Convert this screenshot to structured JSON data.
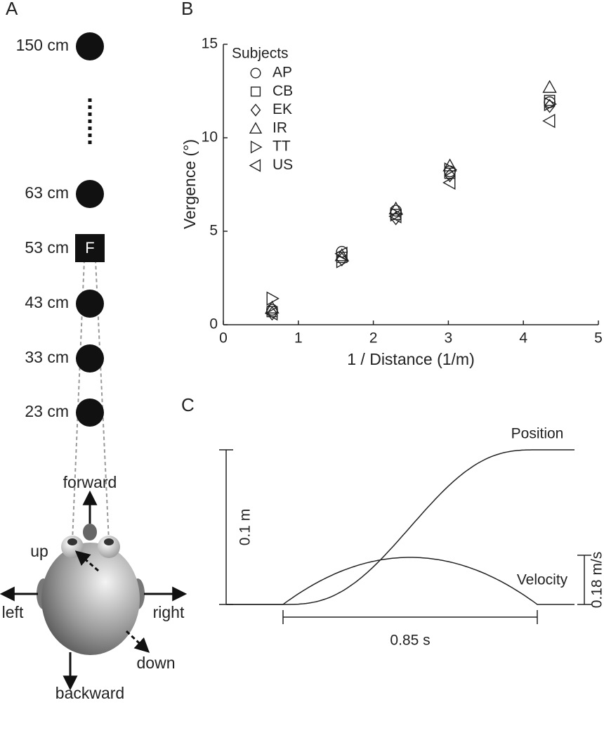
{
  "panel_labels": [
    "A",
    "B",
    "C"
  ],
  "diagram": {
    "distances": [
      "150 cm",
      "63 cm",
      "53 cm",
      "43 cm",
      "33 cm",
      "23 cm"
    ],
    "fixation_label": "F",
    "directions": {
      "forward": "forward",
      "up": "up",
      "left": "left",
      "right": "right",
      "down": "down",
      "backward": "backward"
    }
  },
  "chart_data": {
    "type": "scatter",
    "x_label": "1 / Distance (1/m)",
    "y_label": "Vergence (°)",
    "legend_title": "Subjects",
    "x": [
      0.65,
      1.58,
      2.3,
      3.02,
      4.35
    ],
    "series": [
      {
        "name": "AP",
        "marker": "circle",
        "color": "#222222",
        "values": [
          0.8,
          3.9,
          6.1,
          8.2,
          11.9
        ]
      },
      {
        "name": "CB",
        "marker": "square",
        "color": "#222222",
        "values": [
          0.7,
          3.6,
          5.9,
          8.1,
          12.0
        ]
      },
      {
        "name": "EK",
        "marker": "diamond",
        "color": "#222222",
        "values": [
          0.6,
          3.5,
          5.7,
          8.0,
          11.7
        ]
      },
      {
        "name": "IR",
        "marker": "triangle-up",
        "color": "#222222",
        "values": [
          0.9,
          3.7,
          6.2,
          8.5,
          12.7
        ]
      },
      {
        "name": "TT",
        "marker": "triangle-right",
        "color": "#222222",
        "values": [
          1.4,
          3.4,
          5.9,
          8.3,
          11.8
        ]
      },
      {
        "name": "US",
        "marker": "triangle-left",
        "color": "#222222",
        "values": [
          0.6,
          3.8,
          5.8,
          7.6,
          10.9
        ]
      }
    ],
    "xlim": [
      0,
      5
    ],
    "xticks": [
      0,
      1,
      2,
      3,
      4,
      5
    ],
    "ylim": [
      0,
      15
    ],
    "yticks": [
      0,
      5,
      10,
      15
    ]
  },
  "profile": {
    "position_label": "Position",
    "velocity_label": "Velocity",
    "position_scale": "0.1 m",
    "velocity_scale": "0.18 m/s",
    "time_scale": "0.85 s"
  }
}
